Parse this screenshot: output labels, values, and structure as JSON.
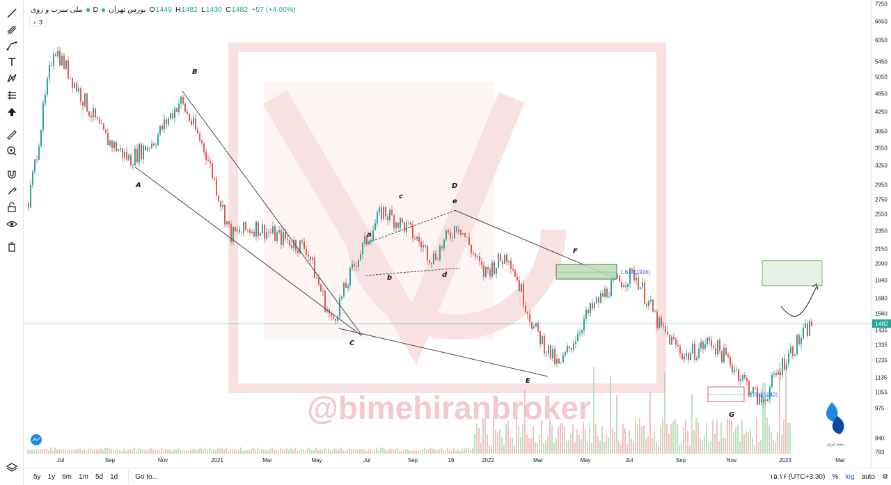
{
  "toolbar": {
    "tools": [
      "trend-line-icon",
      "pitchfork-icon",
      "path-icon",
      "text-icon",
      "xabcd-pattern-icon",
      "long-position-icon",
      "cursor-arrow-icon",
      "ruler-icon",
      "zoom-in-icon",
      "magnet-icon",
      "brush-lock-icon",
      "lock-icon",
      "eye-icon",
      "trash-icon"
    ],
    "bottom": "layers-icon"
  },
  "header": {
    "symbol": "ملی سرب و روی",
    "interval": "D",
    "exchange": "بورس تهران",
    "open_label": "O",
    "open": "1449",
    "high_label": "H",
    "high": "1482",
    "low_label": "L",
    "low": "1430",
    "close_label": "C",
    "close": "1482",
    "change": "+57 (+4.00%)",
    "indicator_count": "3"
  },
  "watermark": "@bimehiranbroker",
  "logo_text": "بیمه ایران",
  "colors": {
    "up": "#26a69a",
    "down": "#ef5350",
    "watermark": "#f3c9c9",
    "trendline": "#434651",
    "green_box": "#b9dcb2",
    "red_box": "#e05656"
  },
  "chart_data": {
    "type": "candlestick",
    "ylim": [
      783,
      7250
    ],
    "y_scale": "log",
    "y_ticks": [
      "7250",
      "6650",
      "6050",
      "5450",
      "5050",
      "4650",
      "4250",
      "3850",
      "3550",
      "3250",
      "2950",
      "2750",
      "2550",
      "2350",
      "2150",
      "2000",
      "1840",
      "1680",
      "1560",
      "1435",
      "1335",
      "1235",
      "1135",
      "1055",
      "975",
      "840",
      "783"
    ],
    "x_ticks": [
      "Jul",
      "Sep",
      "Nov",
      "2021",
      "Mar",
      "May",
      "Jul",
      "Sep",
      "16",
      "2022",
      "Mar",
      "May",
      "Jul",
      "Sep",
      "Nov",
      "2023",
      "Mar"
    ],
    "last_price": "1482",
    "path": [
      {
        "t": "Jun 2020",
        "v": 2700
      },
      {
        "t": "Jul 2020",
        "v": 5900
      },
      {
        "t": "Aug 2020",
        "v": 4700
      },
      {
        "t": "Sep 2020",
        "v": 3750
      },
      {
        "t": "Oct 2020",
        "v": 3350
      },
      {
        "t": "Nov 2020",
        "v": 3700
      },
      {
        "t": "Dec 2020",
        "v": 4500
      },
      {
        "t": "Jan 2021",
        "v": 3500
      },
      {
        "t": "Feb 2021",
        "v": 2300
      },
      {
        "t": "Mar 2021",
        "v": 2400
      },
      {
        "t": "Apr 2021",
        "v": 2270
      },
      {
        "t": "May 2021",
        "v": 2160
      },
      {
        "t": "Jun 2021",
        "v": 1490
      },
      {
        "t": "Jul 2021",
        "v": 2050
      },
      {
        "t": "Aug 2021",
        "v": 2600
      },
      {
        "t": "Sep 2021",
        "v": 2380
      },
      {
        "t": "Oct 2021",
        "v": 2050
      },
      {
        "t": "Nov 2021",
        "v": 2450
      },
      {
        "t": "Dec 2021",
        "v": 1900
      },
      {
        "t": "Jan 2022",
        "v": 2100
      },
      {
        "t": "Feb 2022",
        "v": 1450
      },
      {
        "t": "Mar 2022",
        "v": 1190
      },
      {
        "t": "Apr 2022",
        "v": 1520
      },
      {
        "t": "May 2022",
        "v": 1780
      },
      {
        "t": "Jun 2022",
        "v": 1900
      },
      {
        "t": "Jul 2022",
        "v": 1450
      },
      {
        "t": "Aug 2022",
        "v": 1260
      },
      {
        "t": "Sep 2022",
        "v": 1360
      },
      {
        "t": "Oct 2022",
        "v": 1180
      },
      {
        "t": "Nov 2022",
        "v": 1000
      },
      {
        "t": "Dec 2022",
        "v": 1260
      },
      {
        "t": "Jan 2023",
        "v": 1482
      }
    ],
    "wave_labels": [
      "A",
      "B",
      "C",
      "D",
      "E",
      "F",
      "G",
      "a",
      "b",
      "c",
      "d",
      "e"
    ],
    "fib_levels": [
      {
        "label": "1.618(1916)",
        "value": 1916
      },
      {
        "label": "0.786(1043)",
        "value": 1043
      }
    ],
    "target_zone": [
      1840,
      2000
    ]
  },
  "bottom_bar": {
    "ranges": [
      "5y",
      "1y",
      "6m",
      "1m",
      "5d",
      "1d"
    ],
    "goto": "Go to...",
    "time": "۱۵:۱۶ (UTC+3:30)",
    "percent": "%",
    "log": "log",
    "auto": "auto"
  }
}
